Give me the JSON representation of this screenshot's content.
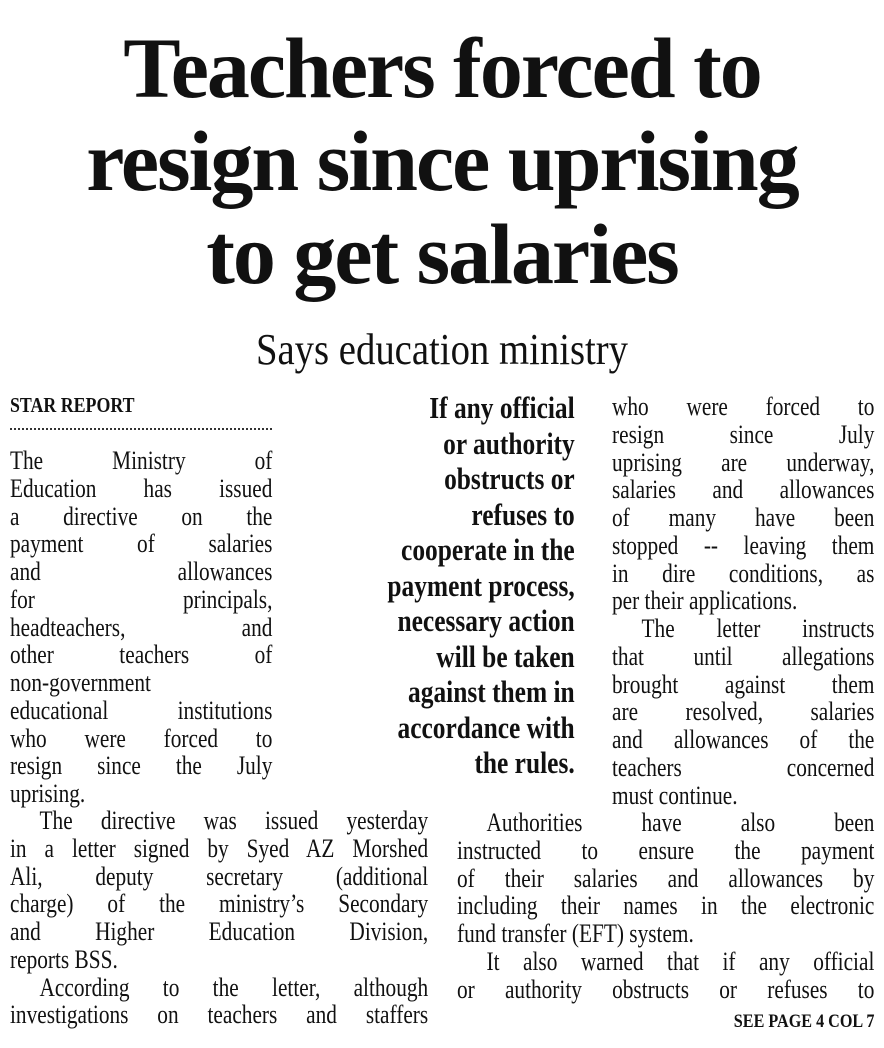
{
  "headline": {
    "lines": [
      "Teachers forced to",
      "resign since uprising",
      "to get salaries"
    ]
  },
  "subhead": "Says education ministry",
  "byline": "STAR REPORT",
  "pull_quote": {
    "lines": [
      "If any official",
      "or authority",
      "obstructs or",
      "refuses to",
      "cooperate in the",
      "payment process,",
      "necessary action",
      "will be taken",
      "against them in",
      "accordance with",
      "the rules."
    ]
  },
  "columns": {
    "left_top": [
      {
        "indent": false,
        "lines": [
          "The Ministry of",
          "Education has issued",
          "a directive on the",
          "payment of salaries",
          "and allowances",
          "for principals,",
          "headteachers, and",
          "other teachers of",
          "non-government",
          "educational institutions",
          "who were forced to",
          "resign since the July",
          "uprising."
        ]
      }
    ],
    "right_top": [
      {
        "indent": false,
        "lines": [
          "who were forced to",
          "resign since July",
          "uprising are underway,",
          "salaries and allowances",
          "of many have been",
          "stopped -- leaving them",
          "in dire conditions, as",
          "per their applications."
        ]
      },
      {
        "indent": true,
        "lines": [
          "The letter instructs",
          "that until allegations",
          "brought against them",
          "are resolved, salaries",
          "and allowances of the",
          "teachers concerned",
          "must continue."
        ]
      }
    ],
    "left_bottom": [
      {
        "indent": true,
        "lines": [
          "The directive was issued yesterday",
          "in a letter signed by Syed AZ Morshed",
          "Ali, deputy secretary (additional",
          "charge) of the ministry’s Secondary",
          "and Higher Education Division,",
          "reports BSS."
        ]
      },
      {
        "indent": true,
        "lines": [
          "According to the letter, although",
          "investigations on teachers and staffers"
        ],
        "continues": true
      }
    ],
    "right_bottom": [
      {
        "indent": true,
        "lines": [
          "Authorities have also been",
          "instructed to ensure the payment",
          "of their salaries and allowances by",
          "including their names in the electronic",
          "fund transfer (EFT) system."
        ]
      },
      {
        "indent": true,
        "lines": [
          "It also warned that if any official",
          "or authority obstructs or refuses to"
        ],
        "continues": true
      }
    ]
  },
  "jump_line": "SEE PAGE 4 COL 7"
}
